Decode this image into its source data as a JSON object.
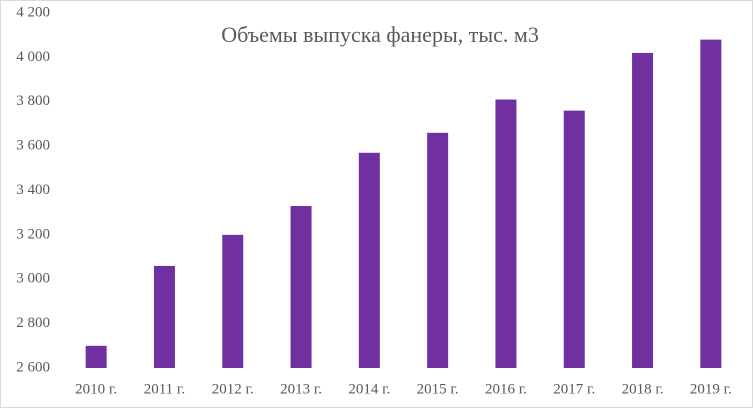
{
  "chart_data": {
    "type": "bar",
    "title": "Объемы выпуска фанеры, тыс. м3",
    "categories": [
      "2010 г.",
      "2011 г.",
      "2012 г.",
      "2013 г.",
      "2014 г.",
      "2015 г.",
      "2016 г.",
      "2017 г.",
      "2018 г.",
      "2019 г."
    ],
    "values": [
      2700,
      3060,
      3200,
      3330,
      3570,
      3660,
      3810,
      3760,
      4020,
      4080
    ],
    "color": "#7030a0",
    "ylim": [
      2600,
      4200
    ],
    "yticks": [
      {
        "value": 2600,
        "label": "2 600"
      },
      {
        "value": 2800,
        "label": "2 800"
      },
      {
        "value": 3000,
        "label": "3 000"
      },
      {
        "value": 3200,
        "label": "3 200"
      },
      {
        "value": 3400,
        "label": "3 400"
      },
      {
        "value": 3600,
        "label": "3 600"
      },
      {
        "value": 3800,
        "label": "3 800"
      },
      {
        "value": 4000,
        "label": "4 000"
      },
      {
        "value": 4200,
        "label": "4 200"
      }
    ],
    "grid": false
  }
}
